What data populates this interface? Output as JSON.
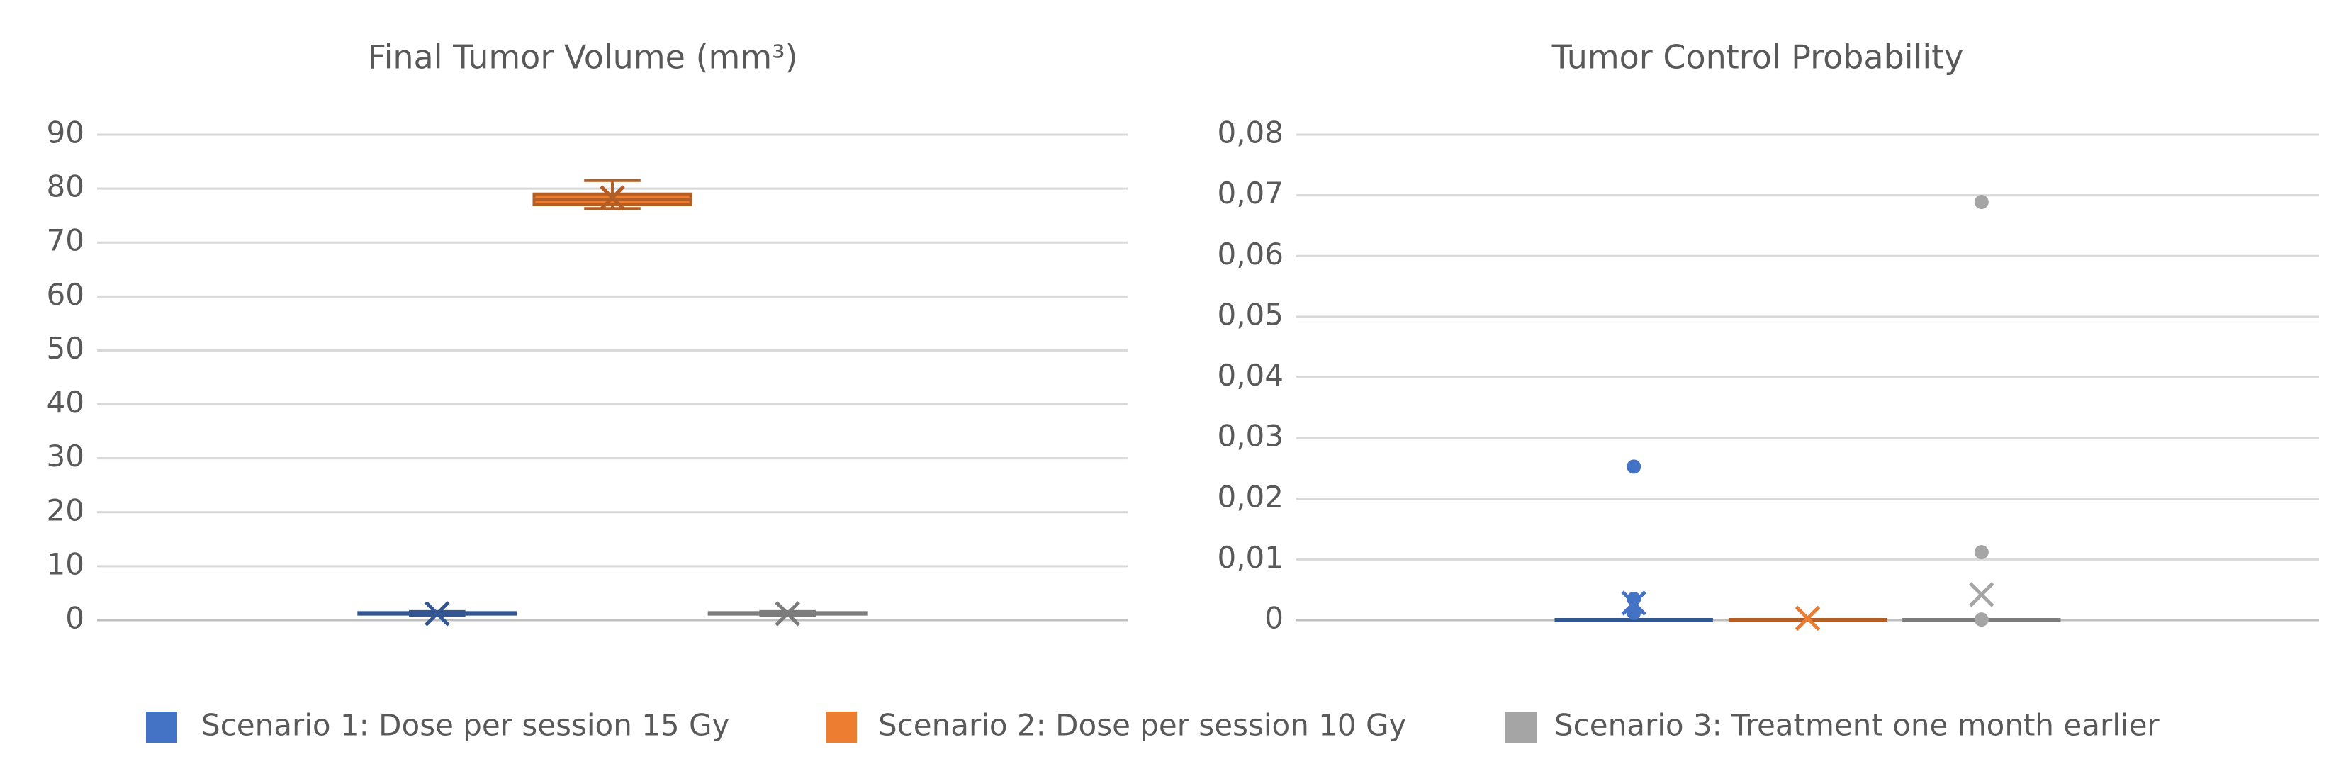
{
  "chart_data": [
    {
      "type": "box",
      "title": "Final Tumor Volume (mm³)",
      "ylim": [
        0,
        90
      ],
      "yticks": [
        0,
        10,
        20,
        30,
        40,
        50,
        60,
        70,
        80,
        90
      ],
      "grid": true,
      "series": [
        {
          "name": "Scenario 1: Dose per session 15 Gy",
          "color": "#4472c4",
          "min": 0.9,
          "q1": 1.1,
          "median": 1.2,
          "q3": 1.4,
          "max": 1.6,
          "mean": 1.2,
          "outliers": []
        },
        {
          "name": "Scenario 2: Dose per session 10 Gy",
          "color": "#ed7d31",
          "min": 76.3,
          "q1": 77,
          "median": 78,
          "q3": 79,
          "max": 81.5,
          "mean": 78.3,
          "outliers": []
        },
        {
          "name": "Scenario 3: Treatment one month earlier",
          "color": "#a5a5a5",
          "min": 0.9,
          "q1": 1.1,
          "median": 1.2,
          "q3": 1.4,
          "max": 1.6,
          "mean": 1.2,
          "outliers": []
        }
      ]
    },
    {
      "type": "box",
      "title": "Tumor Control Probability",
      "ylim": [
        0,
        0.08
      ],
      "yticks": [
        0,
        {
          "value": 0.01,
          "label": "0,01"
        },
        {
          "value": 0.02,
          "label": "0,02"
        },
        {
          "value": 0.03,
          "label": "0,03"
        },
        {
          "value": 0.04,
          "label": "0,04"
        },
        {
          "value": 0.05,
          "label": "0,05"
        },
        {
          "value": 0.06,
          "label": "0,06"
        },
        {
          "value": 0.07,
          "label": "0,07"
        },
        {
          "value": 0.08,
          "label": "0,08"
        }
      ],
      "grid": true,
      "series": [
        {
          "color": "#4472c4",
          "min": 0,
          "q1": 0,
          "median": 0,
          "q3": 0,
          "max": 0,
          "mean": 0.0028,
          "outliers": [
            0.0253,
            0.0035,
            0.0012
          ]
        },
        {
          "color": "#ed7d31",
          "min": 0,
          "q1": 0,
          "median": 0,
          "q3": 0,
          "max": 0,
          "mean": 0.0003,
          "outliers": []
        },
        {
          "color": "#a5a5a5",
          "min": 0,
          "q1": 0,
          "median": 0,
          "q3": 0,
          "max": 0,
          "mean": 0.0042,
          "outliers": [
            0.0689,
            0.0112,
            0.0001
          ]
        }
      ]
    }
  ]
}
